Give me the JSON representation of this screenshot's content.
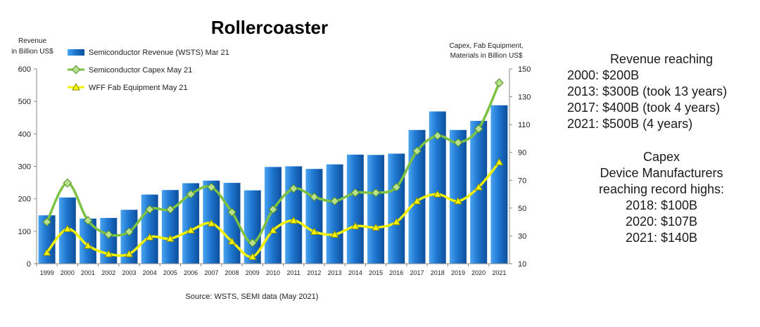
{
  "chart_data": {
    "type": "bar+line",
    "title": "Rollercoaster",
    "left_axis_label": [
      "Revenue",
      "in Billion US$"
    ],
    "right_axis_label": [
      "Capex, Fab Equipment,",
      "Materials in Billion US$"
    ],
    "left_ylim": [
      0,
      600
    ],
    "left_ticks": [
      0,
      100,
      200,
      300,
      400,
      500,
      600
    ],
    "right_ylim": [
      10,
      150
    ],
    "right_ticks": [
      10,
      30,
      50,
      70,
      90,
      110,
      130,
      150
    ],
    "categories": [
      "1999",
      "2000",
      "2001",
      "2002",
      "2003",
      "2004",
      "2005",
      "2006",
      "2007",
      "2008",
      "2009",
      "2010",
      "2011",
      "2012",
      "2013",
      "2014",
      "2015",
      "2016",
      "2017",
      "2018",
      "2019",
      "2020",
      "2021"
    ],
    "series": [
      {
        "name": "Semiconductor Revenue (WSTS) Mar 21",
        "kind": "bar",
        "axis": "left",
        "color": "#1f77d0",
        "values": [
          149,
          204,
          139,
          141,
          166,
          213,
          227,
          248,
          256,
          249,
          226,
          298,
          300,
          292,
          306,
          336,
          335,
          339,
          412,
          469,
          412,
          440,
          488
        ]
      },
      {
        "name": "Semiconductor Capex May 21",
        "kind": "line",
        "axis": "right",
        "color": "#7dc242",
        "values": [
          40,
          68,
          41,
          31,
          33,
          49,
          49,
          60,
          65,
          47,
          25,
          49,
          64,
          58,
          55,
          61,
          61,
          65,
          91,
          102,
          97,
          107,
          140
        ]
      },
      {
        "name": "WFF Fab Equipment May 21",
        "kind": "line",
        "axis": "right",
        "color": "#f0f000",
        "values": [
          18,
          35,
          23,
          17,
          17,
          29,
          28,
          34,
          39,
          26,
          15,
          34,
          41,
          33,
          31,
          37,
          36,
          40,
          55,
          60,
          55,
          65,
          83
        ]
      }
    ],
    "legend_position": "top-left",
    "grid": false,
    "source": "Source: WSTS, SEMI data (May 2021)"
  },
  "side_panel": {
    "revenue_heading": "Revenue reaching",
    "revenue_lines": [
      "2000: $200B",
      "2013: $300B (took 13 years)",
      "2017: $400B (took 4 years)",
      "2021: $500B (4 years)"
    ],
    "capex_lines": [
      "Capex",
      "Device Manufacturers",
      "reaching record highs:",
      "2018: $100B",
      "2020: $107B",
      "2021: $140B"
    ]
  }
}
